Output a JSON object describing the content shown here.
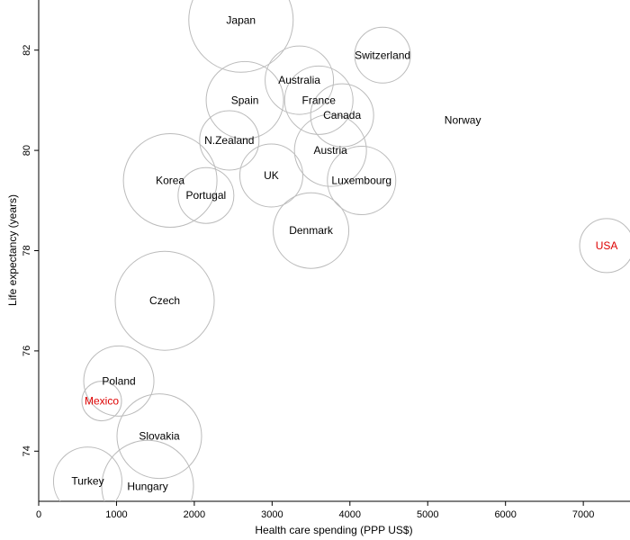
{
  "chart_data": {
    "type": "scatter",
    "title": "",
    "xlabel": "Health care spending (PPP US$)",
    "ylabel": "Life expectancy (years)",
    "xlim": [
      0,
      7600
    ],
    "ylim": [
      73.0,
      83.0
    ],
    "xticks": [
      0,
      1000,
      2000,
      3000,
      4000,
      5000,
      6000,
      7000
    ],
    "yticks": [
      74,
      76,
      78,
      80,
      82
    ],
    "grid": false,
    "legend": "none",
    "colors": {
      "default_label": "#000000",
      "highlight_label": "#dd0000",
      "bubble_stroke": "#bbbbbb"
    },
    "points": [
      {
        "label": "Japan",
        "x": 2600,
        "y": 82.6,
        "size": 58,
        "highlight": false
      },
      {
        "label": "Switzerland",
        "x": 4420,
        "y": 81.9,
        "size": 31,
        "highlight": false
      },
      {
        "label": "Australia",
        "x": 3350,
        "y": 81.4,
        "size": 38,
        "highlight": false
      },
      {
        "label": "Spain",
        "x": 2650,
        "y": 81.0,
        "size": 43,
        "highlight": false
      },
      {
        "label": "France",
        "x": 3600,
        "y": 81.0,
        "size": 38,
        "highlight": false
      },
      {
        "label": "Canada",
        "x": 3900,
        "y": 80.7,
        "size": 35,
        "highlight": false
      },
      {
        "label": "Norway",
        "x": 5450,
        "y": 80.6,
        "size": 0,
        "highlight": false
      },
      {
        "label": "N.Zealand",
        "x": 2450,
        "y": 80.2,
        "size": 33,
        "highlight": false
      },
      {
        "label": "Austria",
        "x": 3750,
        "y": 80.0,
        "size": 40,
        "highlight": false
      },
      {
        "label": "Korea",
        "x": 1690,
        "y": 79.4,
        "size": 52,
        "highlight": false
      },
      {
        "label": "UK",
        "x": 2990,
        "y": 79.5,
        "size": 35,
        "highlight": false
      },
      {
        "label": "Luxembourg",
        "x": 4150,
        "y": 79.4,
        "size": 38,
        "highlight": false
      },
      {
        "label": "Portugal",
        "x": 2150,
        "y": 79.1,
        "size": 31,
        "highlight": false
      },
      {
        "label": "Denmark",
        "x": 3500,
        "y": 78.4,
        "size": 42,
        "highlight": false
      },
      {
        "label": "USA",
        "x": 7300,
        "y": 78.1,
        "size": 30,
        "highlight": true
      },
      {
        "label": "Czech",
        "x": 1620,
        "y": 77.0,
        "size": 55,
        "highlight": false
      },
      {
        "label": "Poland",
        "x": 1030,
        "y": 75.4,
        "size": 39,
        "highlight": false
      },
      {
        "label": "Mexico",
        "x": 810,
        "y": 75.0,
        "size": 22,
        "highlight": true
      },
      {
        "label": "Slovakia",
        "x": 1550,
        "y": 74.3,
        "size": 47,
        "highlight": false
      },
      {
        "label": "Turkey",
        "x": 630,
        "y": 73.4,
        "size": 38,
        "highlight": false
      },
      {
        "label": "Hungary",
        "x": 1400,
        "y": 73.3,
        "size": 51,
        "highlight": false
      }
    ]
  }
}
